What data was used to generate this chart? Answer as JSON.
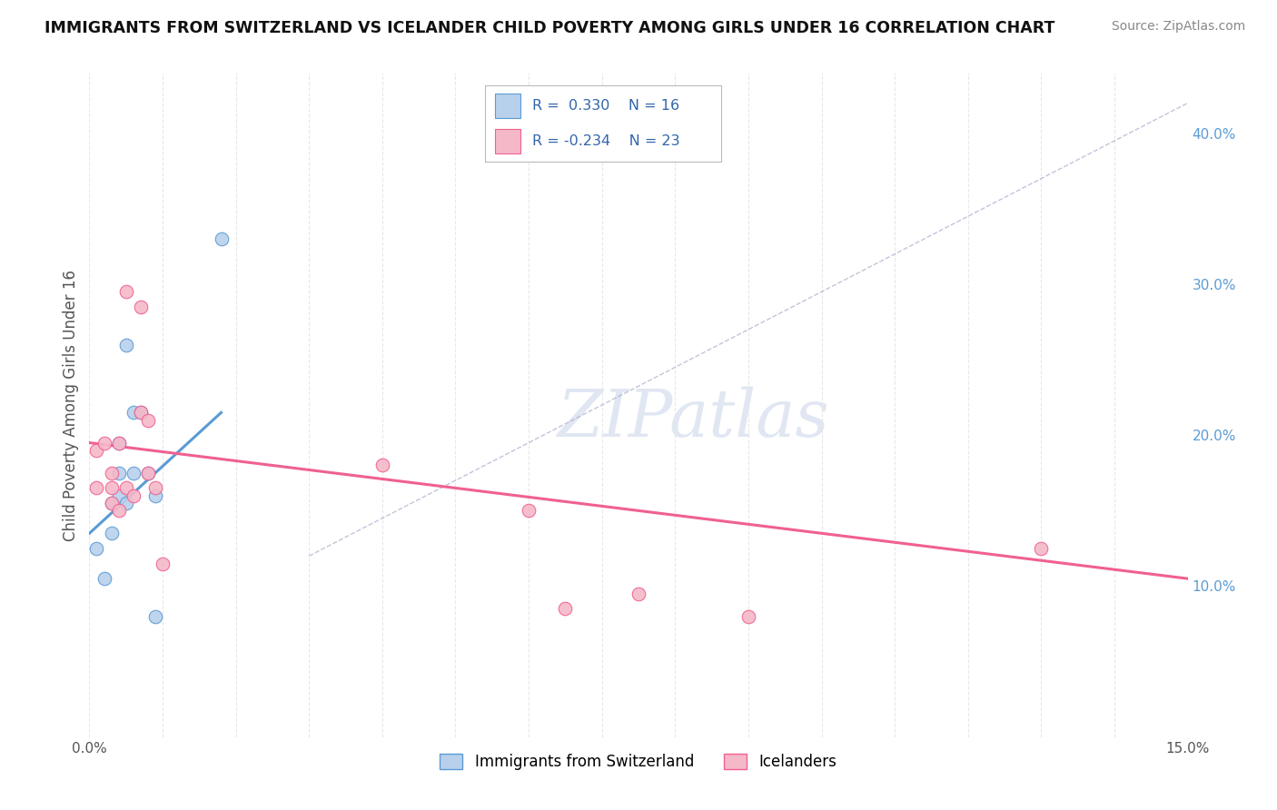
{
  "title": "IMMIGRANTS FROM SWITZERLAND VS ICELANDER CHILD POVERTY AMONG GIRLS UNDER 16 CORRELATION CHART",
  "source": "Source: ZipAtlas.com",
  "ylabel": "Child Poverty Among Girls Under 16",
  "xlim": [
    0.0,
    0.15
  ],
  "ylim": [
    0.0,
    0.44
  ],
  "background_color": "#ffffff",
  "grid_color": "#e8e8e8",
  "watermark_text": "ZIPatlas",
  "swiss_fill_color": "#b8d0eb",
  "swiss_edge_color": "#5b9bd5",
  "icelander_fill_color": "#f5b8c8",
  "icelander_edge_color": "#f06090",
  "legend_R_swiss": "R =  0.330",
  "legend_N_swiss": "N = 16",
  "legend_R_icelander": "R = -0.234",
  "legend_N_icelander": "N = 23",
  "swiss_points_x": [
    0.001,
    0.002,
    0.003,
    0.003,
    0.004,
    0.004,
    0.004,
    0.005,
    0.005,
    0.006,
    0.006,
    0.007,
    0.008,
    0.009,
    0.009,
    0.018
  ],
  "swiss_points_y": [
    0.125,
    0.105,
    0.135,
    0.155,
    0.195,
    0.16,
    0.175,
    0.155,
    0.26,
    0.175,
    0.215,
    0.215,
    0.175,
    0.16,
    0.08,
    0.33
  ],
  "icelander_points_x": [
    0.001,
    0.001,
    0.002,
    0.003,
    0.003,
    0.003,
    0.004,
    0.004,
    0.005,
    0.005,
    0.006,
    0.007,
    0.007,
    0.008,
    0.008,
    0.009,
    0.01,
    0.04,
    0.06,
    0.065,
    0.075,
    0.09,
    0.13
  ],
  "icelander_points_y": [
    0.19,
    0.165,
    0.195,
    0.175,
    0.165,
    0.155,
    0.15,
    0.195,
    0.165,
    0.295,
    0.16,
    0.215,
    0.285,
    0.21,
    0.175,
    0.165,
    0.115,
    0.18,
    0.15,
    0.085,
    0.095,
    0.08,
    0.125
  ],
  "swiss_line_x0": 0.0,
  "swiss_line_x1": 0.018,
  "swiss_line_y0": 0.135,
  "swiss_line_y1": 0.215,
  "icelander_line_x0": 0.0,
  "icelander_line_x1": 0.15,
  "icelander_line_y0": 0.195,
  "icelander_line_y1": 0.105,
  "diag_line_x0": 0.03,
  "diag_line_x1": 0.15,
  "diag_line_y0": 0.12,
  "diag_line_y1": 0.42,
  "ytick_right_vals": [
    0.1,
    0.2,
    0.3,
    0.4
  ],
  "ytick_right_labels": [
    "10.0%",
    "20.0%",
    "30.0%",
    "40.0%"
  ],
  "ytick_right_color": "#5b9bd5",
  "legend_bottom_swiss": "Immigrants from Switzerland",
  "legend_bottom_icelander": "Icelanders"
}
